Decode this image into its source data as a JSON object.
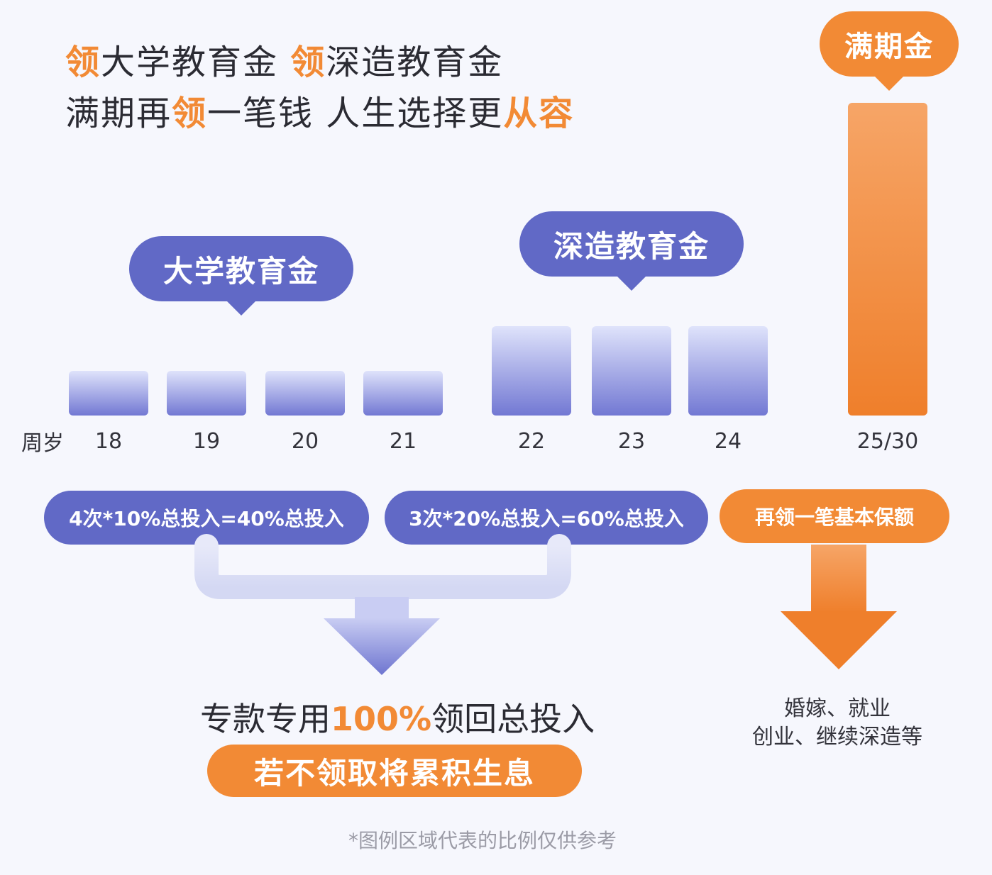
{
  "headline": {
    "line1": [
      {
        "text": "领",
        "hl": true
      },
      {
        "text": "大学教育金 ",
        "hl": false
      },
      {
        "text": "领",
        "hl": true
      },
      {
        "text": "深造教育金",
        "hl": false
      }
    ],
    "line2": [
      {
        "text": "满期再",
        "hl": false
      },
      {
        "text": "领",
        "hl": true
      },
      {
        "text": "一笔钱 人生选择更",
        "hl": false
      },
      {
        "text": "从容",
        "hl": true
      }
    ]
  },
  "colors": {
    "accent_orange": "#f28a35",
    "accent_blue": "#6169c6",
    "bar_blue_top": "#dfe3fb",
    "bar_blue_bottom": "#7278d3",
    "bar_orange_top": "#f6a567",
    "bar_orange_bottom": "#ef7f2b"
  },
  "chart_data": {
    "type": "bar",
    "xlabel": "周岁",
    "ylabel": "",
    "categories": [
      "18",
      "19",
      "20",
      "21",
      "22",
      "23",
      "24",
      "25/30"
    ],
    "values": [
      10,
      10,
      10,
      10,
      20,
      20,
      20,
      70
    ],
    "value_unit": "% of total premium",
    "bar_colors": [
      "blue",
      "blue",
      "blue",
      "blue",
      "blue",
      "blue",
      "blue",
      "orange"
    ],
    "callouts": [
      {
        "label": "大学教育金",
        "categories": [
          "18",
          "19",
          "20",
          "21"
        ]
      },
      {
        "label": "深造教育金",
        "categories": [
          "22",
          "23",
          "24"
        ]
      },
      {
        "label": "满期金",
        "categories": [
          "25/30"
        ]
      }
    ],
    "grid": false,
    "legend": "none"
  },
  "formulas": {
    "university": "4次*10%总投入=40%总投入",
    "advanced": "3次*20%总投入=60%总投入",
    "maturity": "再领一笔基本保额"
  },
  "summary": {
    "prefix": "专款专用",
    "highlight": "100%",
    "suffix": "领回总投入",
    "badge": "若不领取将累积生息"
  },
  "maturity_uses": {
    "line1": "婚嫁、就业",
    "line2": "创业、继续深造等"
  },
  "footnote": "*图例区域代表的比例仅供参考"
}
